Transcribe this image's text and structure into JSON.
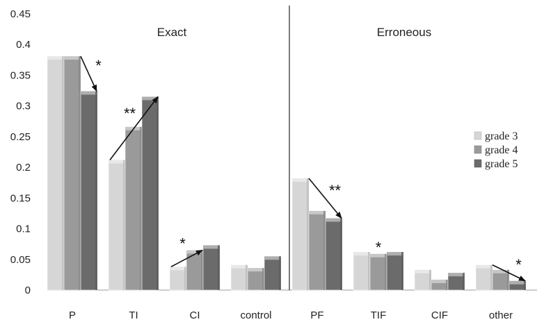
{
  "chart_data": {
    "type": "bar",
    "categories": [
      "P",
      "TI",
      "CI",
      "control",
      "PF",
      "TIF",
      "CIF",
      "other"
    ],
    "series": [
      {
        "name": "grade 3",
        "color": "#d6d6d6",
        "values": [
          0.381,
          0.212,
          0.038,
          0.041,
          0.182,
          0.062,
          0.033,
          0.041
        ]
      },
      {
        "name": "grade 4",
        "color": "#9a9a9a",
        "values": [
          0.381,
          0.266,
          0.065,
          0.036,
          0.129,
          0.059,
          0.017,
          0.033
        ]
      },
      {
        "name": "grade 5",
        "color": "#6b6b6b",
        "values": [
          0.324,
          0.315,
          0.073,
          0.055,
          0.117,
          0.062,
          0.028,
          0.015
        ]
      }
    ],
    "ylim": [
      0,
      0.45
    ],
    "yticks": [
      "0",
      "0.05",
      "0.1",
      "0.15",
      "0.2",
      "0.25",
      "0.3",
      "0.35",
      "0.4",
      "0.45"
    ],
    "section_labels": [
      "Exact",
      "Erroneous"
    ],
    "divider_after_category": "control",
    "legend_position": "right",
    "annotations": [
      {
        "label": "*",
        "category": "P",
        "from_series": "grade 4",
        "to_series": "grade 5",
        "arrow": true
      },
      {
        "label": "**",
        "category": "TI",
        "from_series": "grade 3",
        "to_series": "grade 5",
        "arrow": true
      },
      {
        "label": "*",
        "category": "CI",
        "from_series": "grade 3",
        "to_series": "grade 4",
        "arrow": true
      },
      {
        "label": "**",
        "category": "PF",
        "from_series": "grade 3",
        "to_series": "grade 5",
        "arrow": true
      },
      {
        "label": "*",
        "category": "TIF",
        "from_series": "grade 4",
        "to_series": "grade 4",
        "arrow": false
      },
      {
        "label": "*",
        "category": "other",
        "from_series": "grade 3",
        "to_series": "grade 5",
        "arrow": true
      }
    ]
  }
}
